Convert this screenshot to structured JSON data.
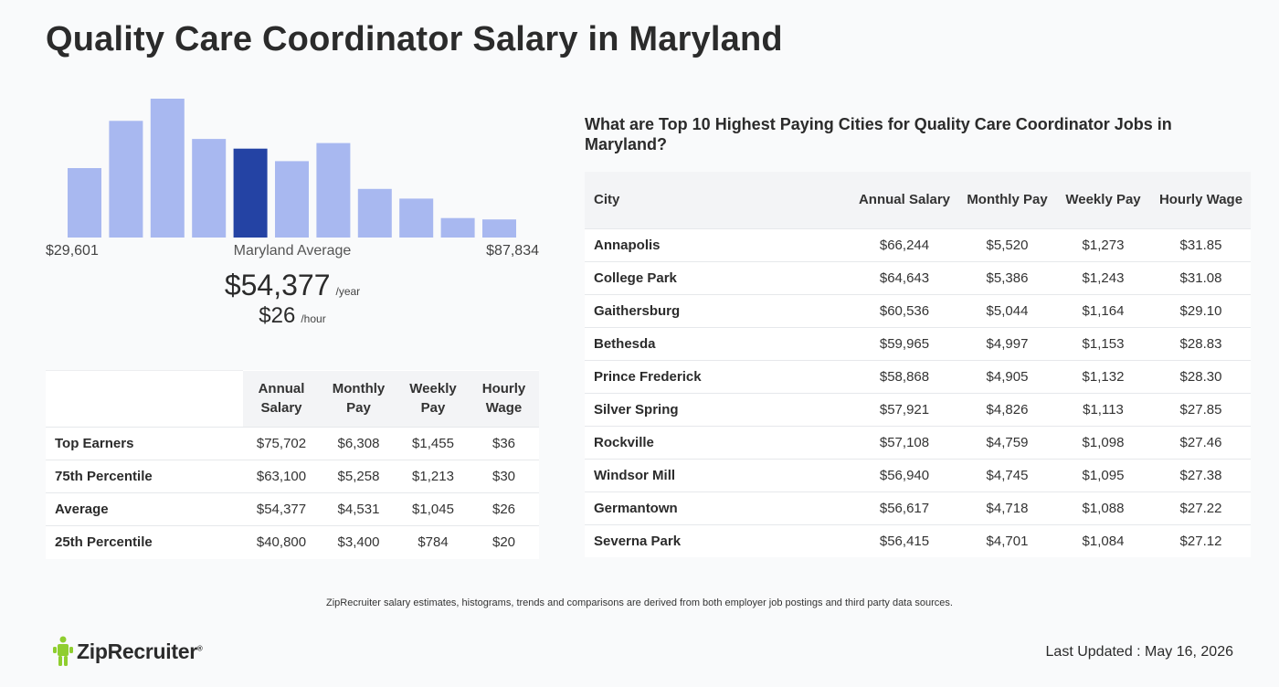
{
  "page": {
    "title": "Quality Care Coordinator Salary in Maryland"
  },
  "summary": {
    "min_label": "$29,601",
    "mid_label": "Maryland Average",
    "max_label": "$87,834",
    "avg_year": "$54,377",
    "avg_year_unit": "/year",
    "avg_hour": "$26",
    "avg_hour_unit": "/hour"
  },
  "chart_data": {
    "type": "bar",
    "title": "",
    "xlabel": "",
    "ylabel": "",
    "x_range": [
      29601,
      87834
    ],
    "values": [
      50,
      84,
      100,
      71,
      64,
      55,
      68,
      35,
      28,
      14,
      13
    ],
    "highlight_index": 4,
    "colors": {
      "bar": "#a8b8f0",
      "highlight": "#2443a4"
    },
    "ylim": [
      0,
      100
    ]
  },
  "percentile_table": {
    "headers": [
      "Annual Salary",
      "Monthly Pay",
      "Weekly Pay",
      "Hourly Wage"
    ],
    "rows": [
      {
        "label": "Top Earners",
        "values": [
          "$75,702",
          "$6,308",
          "$1,455",
          "$36"
        ]
      },
      {
        "label": "75th Percentile",
        "values": [
          "$63,100",
          "$5,258",
          "$1,213",
          "$30"
        ]
      },
      {
        "label": "Average",
        "values": [
          "$54,377",
          "$4,531",
          "$1,045",
          "$26"
        ]
      },
      {
        "label": "25th Percentile",
        "values": [
          "$40,800",
          "$3,400",
          "$784",
          "$20"
        ]
      }
    ]
  },
  "city_table": {
    "heading": "What are Top 10 Highest Paying Cities for Quality Care Coordinator Jobs in Maryland?",
    "headers": [
      "City",
      "Annual Salary",
      "Monthly Pay",
      "Weekly Pay",
      "Hourly Wage"
    ],
    "rows": [
      {
        "city": "Annapolis",
        "values": [
          "$66,244",
          "$5,520",
          "$1,273",
          "$31.85"
        ]
      },
      {
        "city": "College Park",
        "values": [
          "$64,643",
          "$5,386",
          "$1,243",
          "$31.08"
        ]
      },
      {
        "city": "Gaithersburg",
        "values": [
          "$60,536",
          "$5,044",
          "$1,164",
          "$29.10"
        ]
      },
      {
        "city": "Bethesda",
        "values": [
          "$59,965",
          "$4,997",
          "$1,153",
          "$28.83"
        ]
      },
      {
        "city": "Prince Frederick",
        "values": [
          "$58,868",
          "$4,905",
          "$1,132",
          "$28.30"
        ]
      },
      {
        "city": "Silver Spring",
        "values": [
          "$57,921",
          "$4,826",
          "$1,113",
          "$27.85"
        ]
      },
      {
        "city": "Rockville",
        "values": [
          "$57,108",
          "$4,759",
          "$1,098",
          "$27.46"
        ]
      },
      {
        "city": "Windsor Mill",
        "values": [
          "$56,940",
          "$4,745",
          "$1,095",
          "$27.38"
        ]
      },
      {
        "city": "Germantown",
        "values": [
          "$56,617",
          "$4,718",
          "$1,088",
          "$27.22"
        ]
      },
      {
        "city": "Severna Park",
        "values": [
          "$56,415",
          "$4,701",
          "$1,084",
          "$27.12"
        ]
      }
    ]
  },
  "footer": {
    "note": "ZipRecruiter salary estimates, histograms, trends and comparisons are derived from both employer job postings and third party data sources.",
    "logo_text": "ZipRecruiter",
    "logo_icon": "ziprecruiter-logo-icon",
    "updated": "Last Updated : May 16, 2026"
  }
}
